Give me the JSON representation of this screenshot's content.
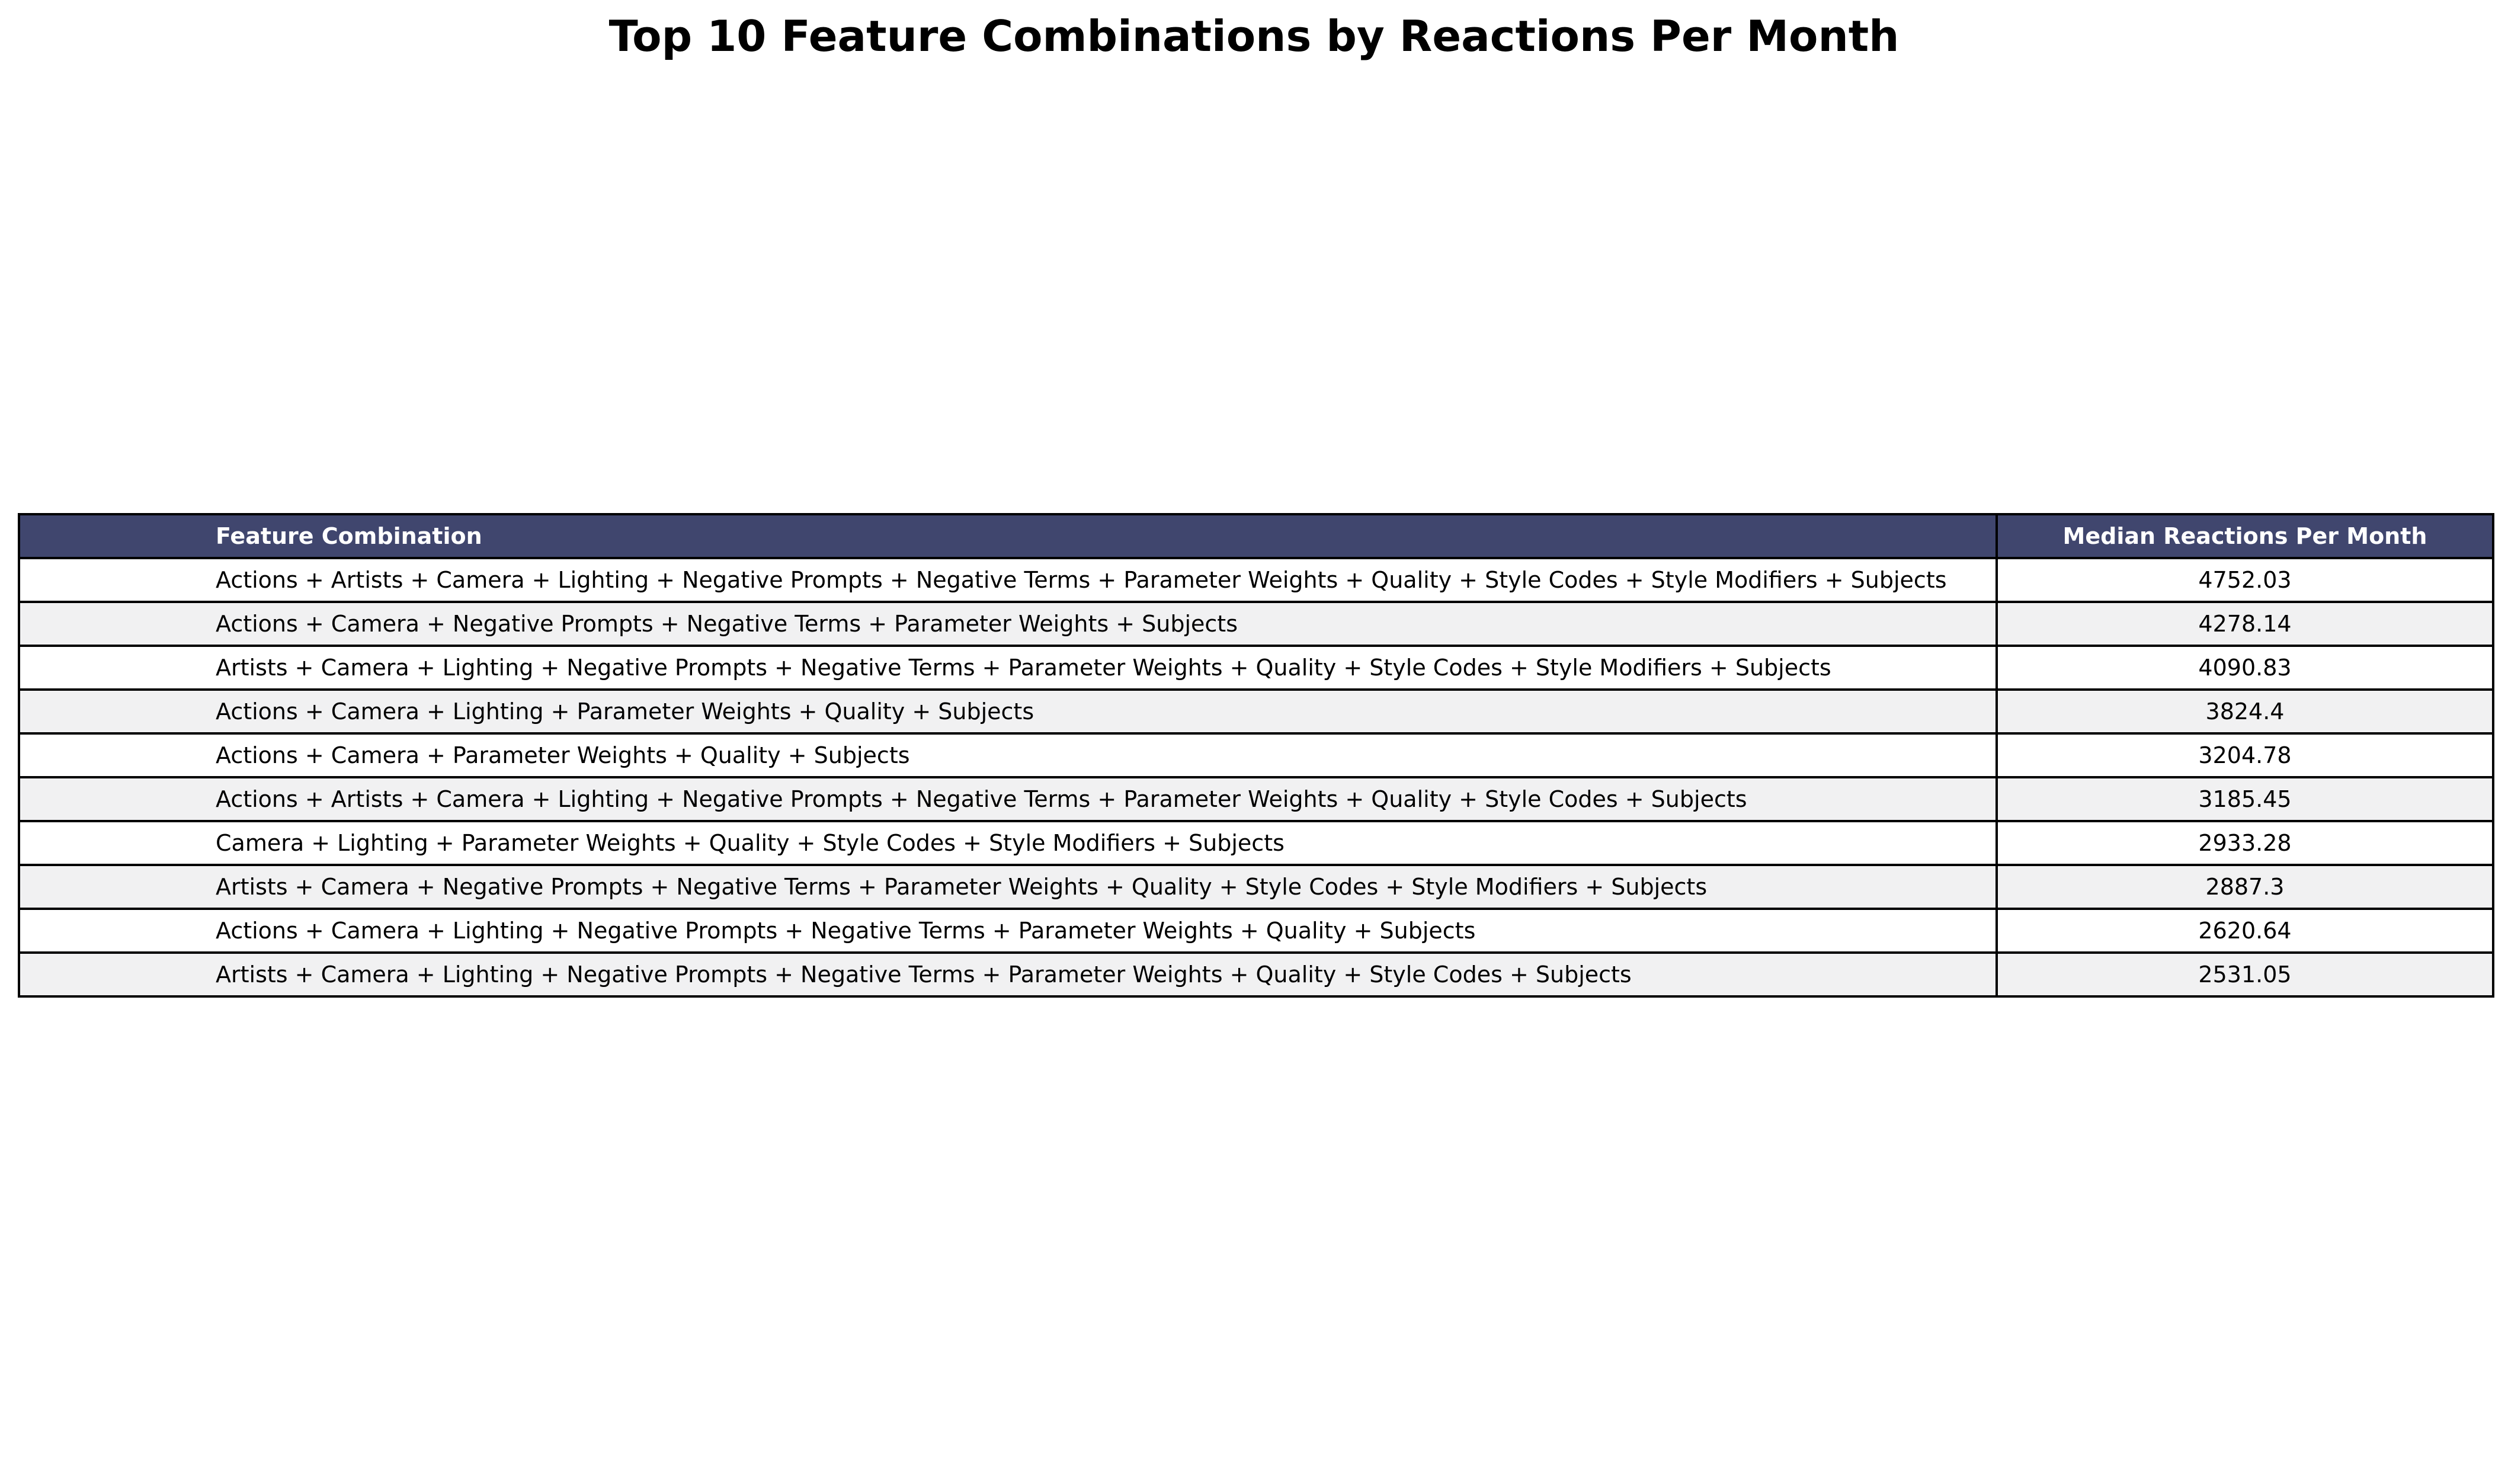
{
  "chart_data": {
    "type": "table",
    "title": "Top 10 Feature Combinations by Reactions Per Month",
    "columns": [
      "Feature Combination",
      "Median Reactions Per Month"
    ],
    "header_color": "#40466e",
    "row_colors": [
      "#ffffff",
      "#f1f1f2"
    ],
    "rows": [
      [
        "Actions + Artists + Camera + Lighting + Negative Prompts + Negative Terms + Parameter Weights + Quality + Style Codes + Style Modifiers + Subjects",
        "4752.03"
      ],
      [
        "Actions + Camera + Negative Prompts + Negative Terms + Parameter Weights + Subjects",
        "4278.14"
      ],
      [
        "Artists + Camera + Lighting + Negative Prompts + Negative Terms + Parameter Weights + Quality + Style Codes + Style Modifiers + Subjects",
        "4090.83"
      ],
      [
        "Actions + Camera + Lighting + Parameter Weights + Quality + Subjects",
        "3824.4"
      ],
      [
        "Actions + Camera + Parameter Weights + Quality + Subjects",
        "3204.78"
      ],
      [
        "Actions + Artists + Camera + Lighting + Negative Prompts + Negative Terms + Parameter Weights + Quality + Style Codes + Subjects",
        "3185.45"
      ],
      [
        "Camera + Lighting + Parameter Weights + Quality + Style Codes + Style Modifiers + Subjects",
        "2933.28"
      ],
      [
        "Artists + Camera + Negative Prompts + Negative Terms + Parameter Weights + Quality + Style Codes + Style Modifiers + Subjects",
        "2887.3"
      ],
      [
        "Actions + Camera + Lighting + Negative Prompts + Negative Terms + Parameter Weights + Quality + Subjects",
        "2620.64"
      ],
      [
        "Artists + Camera + Lighting + Negative Prompts + Negative Terms + Parameter Weights + Quality + Style Codes + Subjects",
        "2531.05"
      ]
    ]
  }
}
